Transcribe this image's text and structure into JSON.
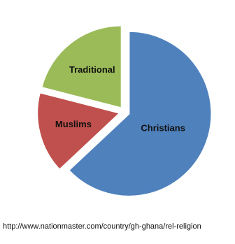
{
  "chart_data": {
    "type": "pie",
    "title": "",
    "categories": [
      "Christians",
      "Muslims",
      "Traditional"
    ],
    "values": [
      63,
      16,
      21
    ],
    "unit": "%",
    "colors": {
      "Christians": "#4f81bd",
      "Muslims": "#c0504d",
      "Traditional": "#9bbb59"
    },
    "exploded": true,
    "legend": "none"
  },
  "source": {
    "text": "http://www.nationmaster.com/country/gh-ghana/rel-religion"
  }
}
